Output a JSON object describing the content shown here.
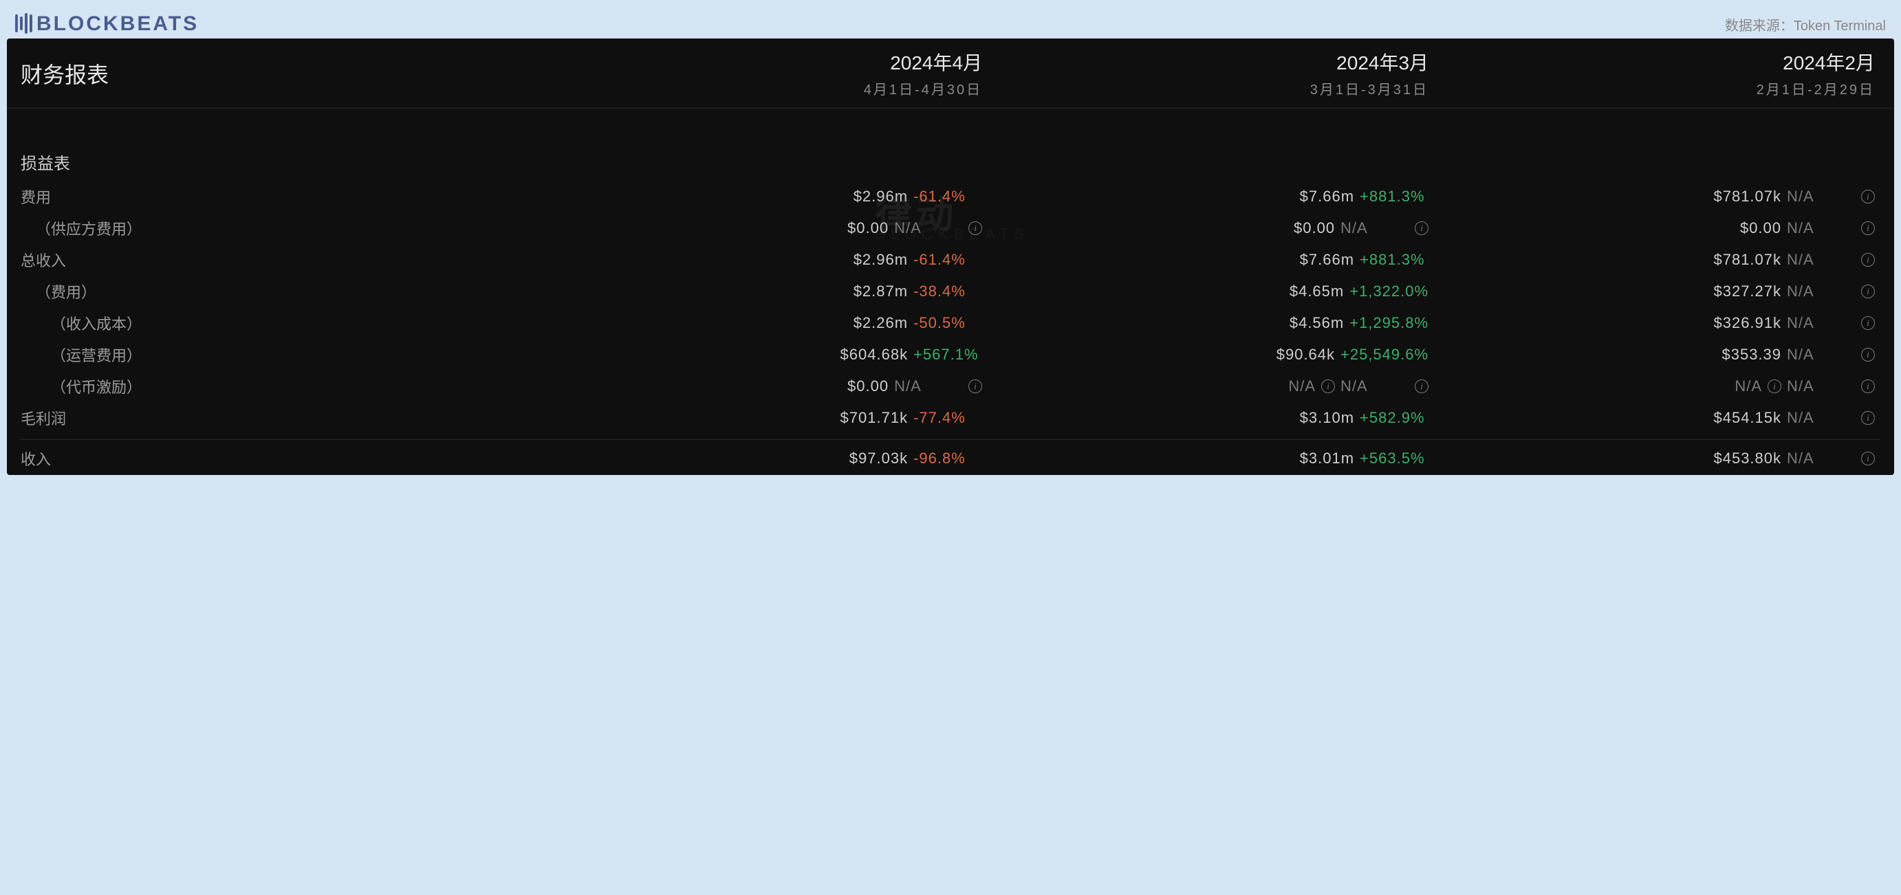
{
  "logo_text": "BLOCKBEATS",
  "source_label": "数据来源：Token Terminal",
  "table_title": "财务报表",
  "watermark": "律动",
  "watermark_sub": "BLOCKBEATS",
  "columns": [
    {
      "title": "2024年4月",
      "sub": "4月1日-4月30日"
    },
    {
      "title": "2024年3月",
      "sub": "3月1日-3月31日"
    },
    {
      "title": "2024年2月",
      "sub": "2月1日-2月29日"
    }
  ],
  "section": "损益表",
  "rows": [
    {
      "label": "费用",
      "indent": 0,
      "cells": [
        {
          "val": "$2.96m",
          "pct": "-61.4%",
          "pct_cls": "neg",
          "info": false
        },
        {
          "val": "$7.66m",
          "pct": "+881.3%",
          "pct_cls": "pos",
          "info": false
        },
        {
          "val": "$781.07k",
          "pct": "N/A",
          "pct_cls": "na",
          "info": true
        }
      ]
    },
    {
      "label": "（供应方费用）",
      "indent": 1,
      "cells": [
        {
          "val": "$0.00",
          "pct": "N/A",
          "pct_cls": "na",
          "info": true
        },
        {
          "val": "$0.00",
          "pct": "N/A",
          "pct_cls": "na",
          "info": true
        },
        {
          "val": "$0.00",
          "pct": "N/A",
          "pct_cls": "na",
          "info": true
        }
      ]
    },
    {
      "label": "总收入",
      "indent": 0,
      "cells": [
        {
          "val": "$2.96m",
          "pct": "-61.4%",
          "pct_cls": "neg",
          "info": false
        },
        {
          "val": "$7.66m",
          "pct": "+881.3%",
          "pct_cls": "pos",
          "info": false
        },
        {
          "val": "$781.07k",
          "pct": "N/A",
          "pct_cls": "na",
          "info": true
        }
      ]
    },
    {
      "label": "（费用）",
      "indent": 1,
      "cells": [
        {
          "val": "$2.87m",
          "pct": "-38.4%",
          "pct_cls": "neg",
          "info": false
        },
        {
          "val": "$4.65m",
          "pct": "+1,322.0%",
          "pct_cls": "pos",
          "info": false
        },
        {
          "val": "$327.27k",
          "pct": "N/A",
          "pct_cls": "na",
          "info": true
        }
      ]
    },
    {
      "label": "（收入成本）",
      "indent": 2,
      "cells": [
        {
          "val": "$2.26m",
          "pct": "-50.5%",
          "pct_cls": "neg",
          "info": false
        },
        {
          "val": "$4.56m",
          "pct": "+1,295.8%",
          "pct_cls": "pos",
          "info": false
        },
        {
          "val": "$326.91k",
          "pct": "N/A",
          "pct_cls": "na",
          "info": true
        }
      ]
    },
    {
      "label": "（运营费用）",
      "indent": 2,
      "cells": [
        {
          "val": "$604.68k",
          "pct": "+567.1%",
          "pct_cls": "pos",
          "info": false
        },
        {
          "val": "$90.64k",
          "pct": "+25,549.6%",
          "pct_cls": "pos",
          "info": false
        },
        {
          "val": "$353.39",
          "pct": "N/A",
          "pct_cls": "na",
          "info": true
        }
      ]
    },
    {
      "label": "（代币激励）",
      "indent": 2,
      "cells": [
        {
          "val": "$0.00",
          "pct": "N/A",
          "pct_cls": "na",
          "info": true
        },
        {
          "val": "N/A",
          "val_cls": "na",
          "pct": "N/A",
          "pct_cls": "na",
          "info": true,
          "val_info": true
        },
        {
          "val": "N/A",
          "val_cls": "na",
          "pct": "N/A",
          "pct_cls": "na",
          "info": true,
          "val_info": true
        }
      ]
    },
    {
      "label": "毛利润",
      "indent": 0,
      "cells": [
        {
          "val": "$701.71k",
          "pct": "-77.4%",
          "pct_cls": "neg",
          "info": false
        },
        {
          "val": "$3.10m",
          "pct": "+582.9%",
          "pct_cls": "pos",
          "info": false
        },
        {
          "val": "$454.15k",
          "pct": "N/A",
          "pct_cls": "na",
          "info": true
        }
      ]
    },
    {
      "label": "收入",
      "indent": 0,
      "border_top": true,
      "cells": [
        {
          "val": "$97.03k",
          "pct": "-96.8%",
          "pct_cls": "neg",
          "info": false
        },
        {
          "val": "$3.01m",
          "pct": "+563.5%",
          "pct_cls": "pos",
          "info": false
        },
        {
          "val": "$453.80k",
          "pct": "N/A",
          "pct_cls": "na",
          "info": true
        }
      ]
    }
  ],
  "colors": {
    "page_bg": "#d6e5f3",
    "panel_bg": "#0f0f0f",
    "text_light": "#e8e8e8",
    "text_muted": "#8a8a8a",
    "positive": "#3fae6a",
    "negative": "#d66a4a",
    "na": "#7a7a7a",
    "logo": "#4a5d8f"
  }
}
